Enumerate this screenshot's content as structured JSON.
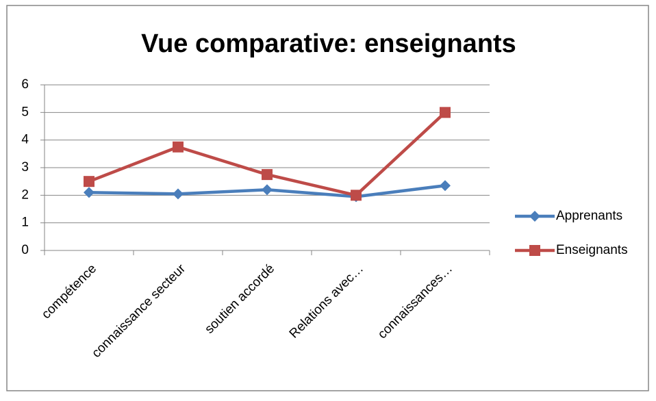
{
  "chart_data": {
    "type": "line",
    "title": "Vue comparative: enseignants",
    "categories": [
      "compétence",
      "connaissance secteur",
      "soutien accordé",
      "Relations avec…",
      "connaissances…"
    ],
    "series": [
      {
        "name": "Apprenants",
        "color": "#4a7ebb",
        "marker": "diamond",
        "values": [
          2.1,
          2.05,
          2.2,
          1.95,
          2.35
        ]
      },
      {
        "name": "Enseignants",
        "color": "#be4b48",
        "marker": "square",
        "values": [
          2.5,
          3.75,
          2.75,
          2.0,
          5.0
        ]
      }
    ],
    "ylim": [
      0,
      6
    ],
    "yticks": [
      0,
      1,
      2,
      3,
      4,
      5,
      6
    ],
    "grid": true,
    "legend": "right"
  }
}
